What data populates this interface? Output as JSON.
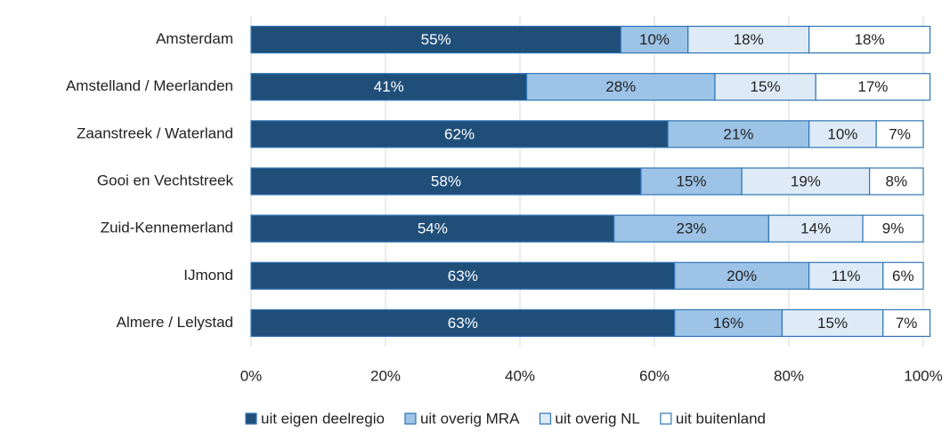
{
  "chart_data": {
    "type": "stacked_barh",
    "categories": [
      "Amsterdam",
      "Amstelland / Meerlanden",
      "Zaanstreek / Waterland",
      "Gooi en Vechtstreek",
      "Zuid-Kennemerland",
      "IJmond",
      "Almere / Lelystad"
    ],
    "series": [
      {
        "name": "uit eigen deelregio",
        "color": "#1f4e79",
        "values": [
          55,
          41,
          62,
          58,
          54,
          63,
          63
        ],
        "value_labels": [
          "55%",
          "41%",
          "62%",
          "58%",
          "54%",
          "63%",
          "63%"
        ]
      },
      {
        "name": "uit overig MRA",
        "color": "#9dc3e6",
        "values": [
          10,
          28,
          21,
          15,
          23,
          20,
          16
        ],
        "value_labels": [
          "10%",
          "28%",
          "21%",
          "15%",
          "23%",
          "20%",
          "16%"
        ]
      },
      {
        "name": "uit overig NL",
        "color": "#deebf7",
        "values": [
          18,
          15,
          10,
          19,
          14,
          11,
          15
        ],
        "value_labels": [
          "18%",
          "15%",
          "10%",
          "19%",
          "14%",
          "11%",
          "15%"
        ]
      },
      {
        "name": "uit buitenland",
        "color": "#ffffff",
        "values": [
          18,
          17,
          7,
          8,
          9,
          6,
          7
        ],
        "value_labels": [
          "18%",
          "17%",
          "7%",
          "8%",
          "9%",
          "6%",
          "7%"
        ]
      }
    ],
    "xlim": [
      0,
      100
    ],
    "xticks": [
      {
        "value": 0,
        "label": "0%"
      },
      {
        "value": 20,
        "label": "20%"
      },
      {
        "value": 40,
        "label": "40%"
      },
      {
        "value": 60,
        "label": "60%"
      },
      {
        "value": 80,
        "label": "80%"
      },
      {
        "value": 100,
        "label": "100%"
      }
    ],
    "grid": true,
    "legend": "bottom"
  }
}
